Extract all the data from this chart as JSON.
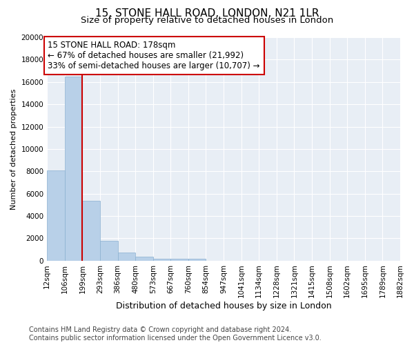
{
  "title": "15, STONE HALL ROAD, LONDON, N21 1LR",
  "subtitle": "Size of property relative to detached houses in London",
  "xlabel": "Distribution of detached houses by size in London",
  "ylabel": "Number of detached properties",
  "bar_values": [
    8100,
    16500,
    5350,
    1750,
    750,
    350,
    200,
    150,
    150,
    0,
    0,
    0,
    0,
    0,
    0,
    0,
    0,
    0,
    0,
    0
  ],
  "categories": [
    "12sqm",
    "106sqm",
    "199sqm",
    "293sqm",
    "386sqm",
    "480sqm",
    "573sqm",
    "667sqm",
    "760sqm",
    "854sqm",
    "947sqm",
    "1041sqm",
    "1134sqm",
    "1228sqm",
    "1321sqm",
    "1415sqm",
    "1508sqm",
    "1602sqm",
    "1695sqm",
    "1789sqm",
    "1882sqm"
  ],
  "bar_color": "#b8d0e8",
  "bar_edge_color": "#8ab0d0",
  "vline_color": "#cc0000",
  "annotation_text": "15 STONE HALL ROAD: 178sqm\n← 67% of detached houses are smaller (21,992)\n33% of semi-detached houses are larger (10,707) →",
  "annotation_box_color": "#ffffff",
  "annotation_box_edge_color": "#cc0000",
  "ylim": [
    0,
    20000
  ],
  "yticks": [
    0,
    2000,
    4000,
    6000,
    8000,
    10000,
    12000,
    14000,
    16000,
    18000,
    20000
  ],
  "footer_line1": "Contains HM Land Registry data © Crown copyright and database right 2024.",
  "footer_line2": "Contains public sector information licensed under the Open Government Licence v3.0.",
  "plot_bg_color": "#e8eef5",
  "title_fontsize": 11,
  "subtitle_fontsize": 9.5,
  "xlabel_fontsize": 9,
  "ylabel_fontsize": 8,
  "tick_fontsize": 7.5,
  "annotation_fontsize": 8.5,
  "footer_fontsize": 7
}
